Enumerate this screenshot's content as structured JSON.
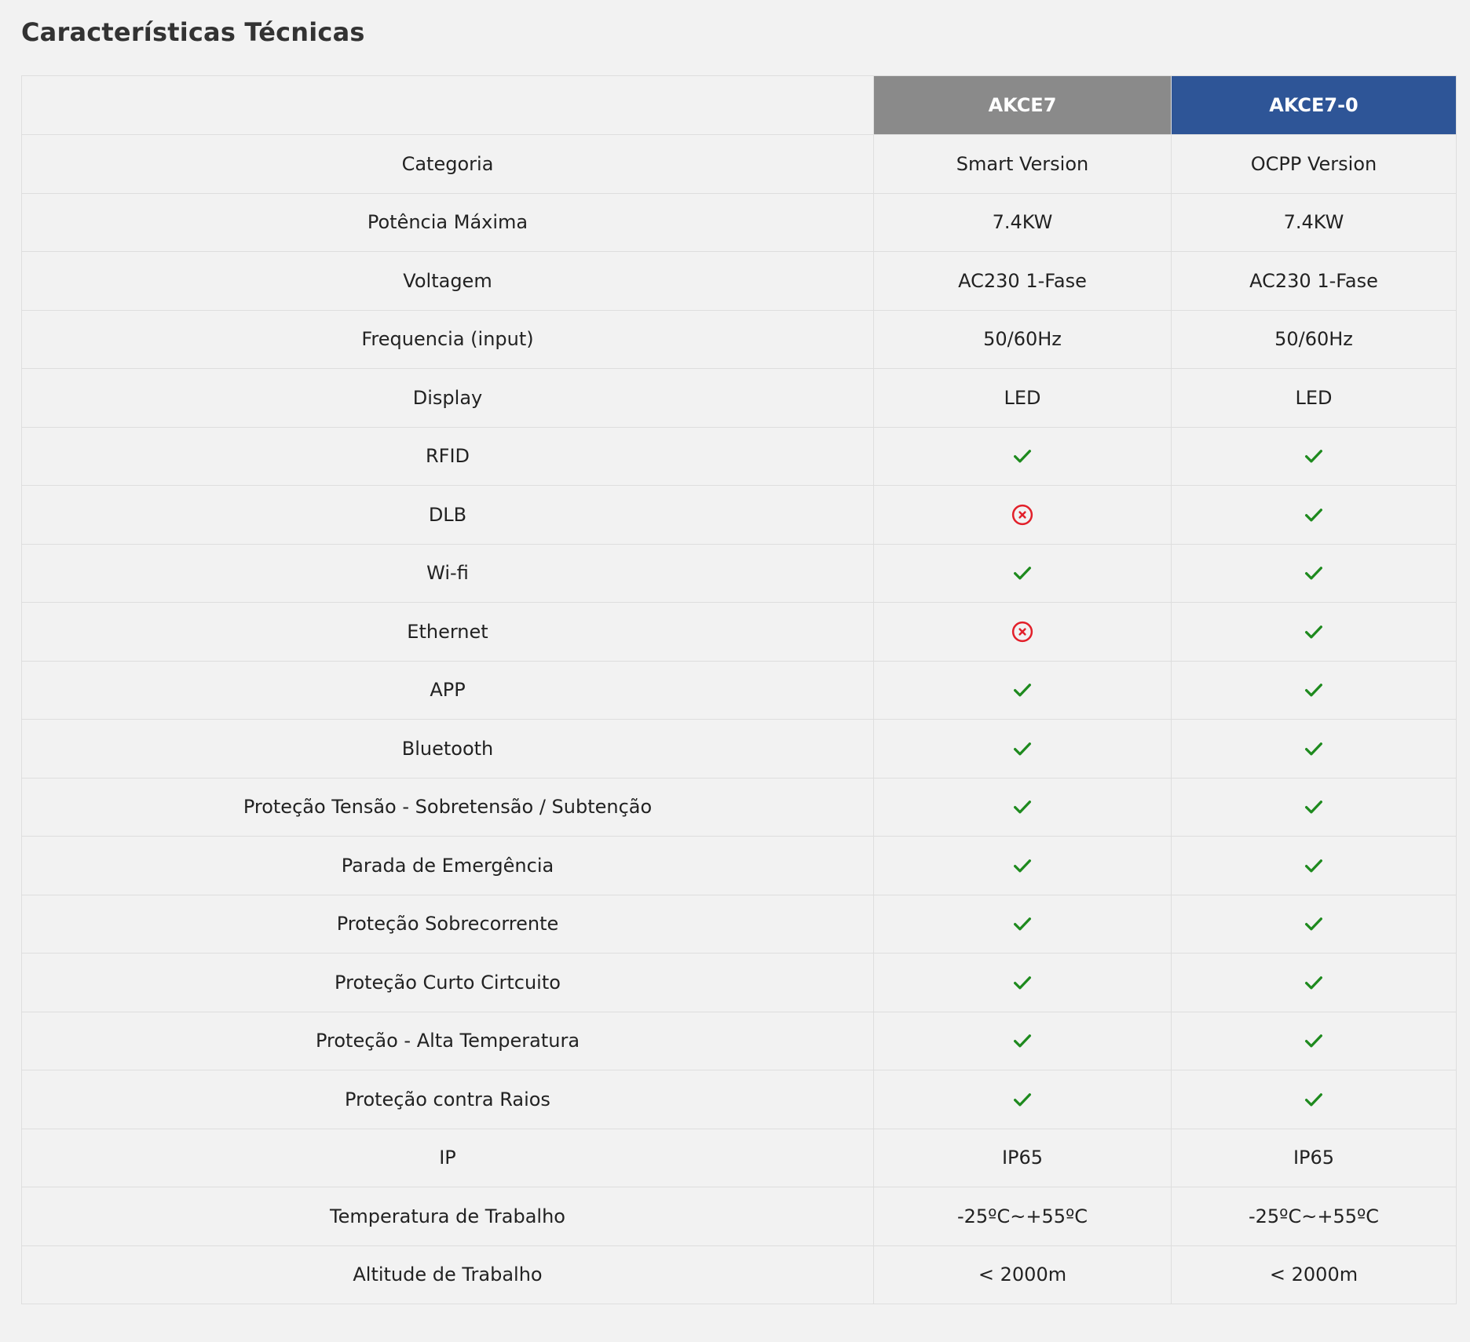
{
  "title": "Características Técnicas",
  "models": [
    {
      "name": "AKCE7",
      "header_color": "#8a8a8a"
    },
    {
      "name": "AKCE7-0",
      "header_color": "#2e5597"
    }
  ],
  "icons": {
    "yes": {
      "name": "check-icon",
      "color": "#1e8a1e"
    },
    "no": {
      "name": "x-circle-icon",
      "color": "#e2202a"
    }
  },
  "rows": [
    {
      "label": "Categoria",
      "values": [
        "Smart Version",
        "OCPP Version"
      ]
    },
    {
      "label": "Potência Máxima",
      "values": [
        "7.4KW",
        "7.4KW"
      ]
    },
    {
      "label": "Voltagem",
      "values": [
        "AC230 1-Fase",
        "AC230 1-Fase"
      ]
    },
    {
      "label": "Frequencia (input)",
      "values": [
        "50/60Hz",
        "50/60Hz"
      ]
    },
    {
      "label": "Display",
      "values": [
        "LED",
        "LED"
      ]
    },
    {
      "label": "RFID",
      "values": [
        "yes",
        "yes"
      ]
    },
    {
      "label": "DLB",
      "values": [
        "no",
        "yes"
      ]
    },
    {
      "label": "Wi-fi",
      "values": [
        "yes",
        "yes"
      ]
    },
    {
      "label": "Ethernet",
      "values": [
        "no",
        "yes"
      ]
    },
    {
      "label": "APP",
      "values": [
        "yes",
        "yes"
      ]
    },
    {
      "label": "Bluetooth",
      "values": [
        "yes",
        "yes"
      ]
    },
    {
      "label": "Proteção Tensão - Sobretensão / Subtenção",
      "values": [
        "yes",
        "yes"
      ]
    },
    {
      "label": "Parada de Emergência",
      "values": [
        "yes",
        "yes"
      ]
    },
    {
      "label": "Proteção Sobrecorrente",
      "values": [
        "yes",
        "yes"
      ]
    },
    {
      "label": "Proteção Curto Cirtcuito",
      "values": [
        "yes",
        "yes"
      ]
    },
    {
      "label": "Proteção - Alta Temperatura",
      "values": [
        "yes",
        "yes"
      ]
    },
    {
      "label": "Proteção contra Raios",
      "values": [
        "yes",
        "yes"
      ]
    },
    {
      "label": "IP",
      "values": [
        "IP65",
        "IP65"
      ]
    },
    {
      "label": "Temperatura de Trabalho",
      "values": [
        "-25ºC~+55ºC",
        "-25ºC~+55ºC"
      ]
    },
    {
      "label": "Altitude de Trabalho",
      "values": [
        "< 2000m",
        "< 2000m"
      ]
    }
  ]
}
